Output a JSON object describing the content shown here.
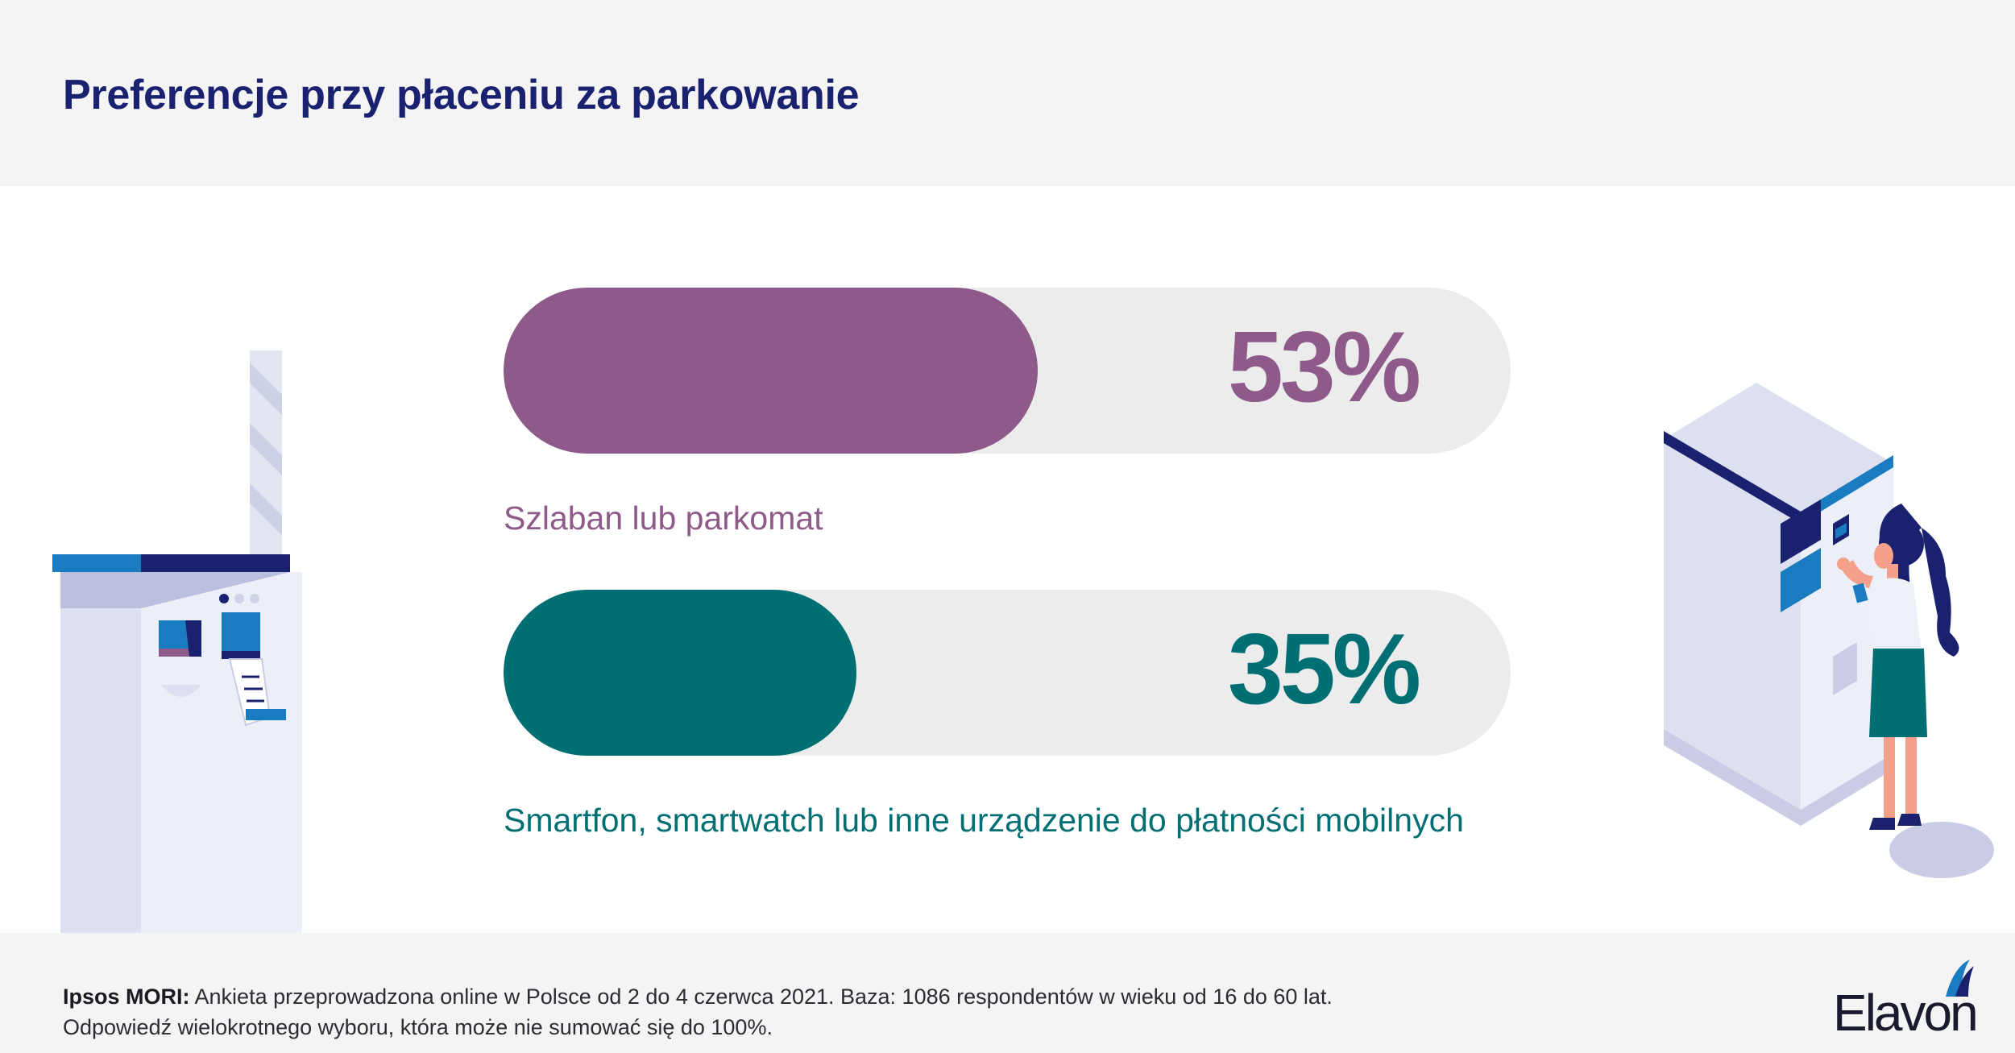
{
  "header": {
    "title": "Preferencje przy płaceniu za parkowanie"
  },
  "chart_data": {
    "type": "bar",
    "orientation": "horizontal",
    "xlim": [
      0,
      100
    ],
    "categories": [
      "Szlaban lub parkomat",
      "Smartfon, smartwatch lub inne urządzenie do płatności mobilnych"
    ],
    "values": [
      53,
      35
    ],
    "value_labels": [
      "53%",
      "35%"
    ],
    "colors": [
      "#8e5a8a",
      "#006f74"
    ],
    "track_color": "#ececec",
    "legend": "none",
    "grid": false
  },
  "footer": {
    "source_label": "Ipsos MORI:",
    "source_text": " Ankieta przeprowadzona online w Polsce od 2 do 4 czerwca 2021. Baza: 1086 respondentów w wieku od 16 do 60 lat.",
    "note_line2": "Odpowiedź wielokrotnego wyboru, która może nie sumować się do 100%."
  },
  "brand": {
    "logo_text": "Elavon"
  }
}
